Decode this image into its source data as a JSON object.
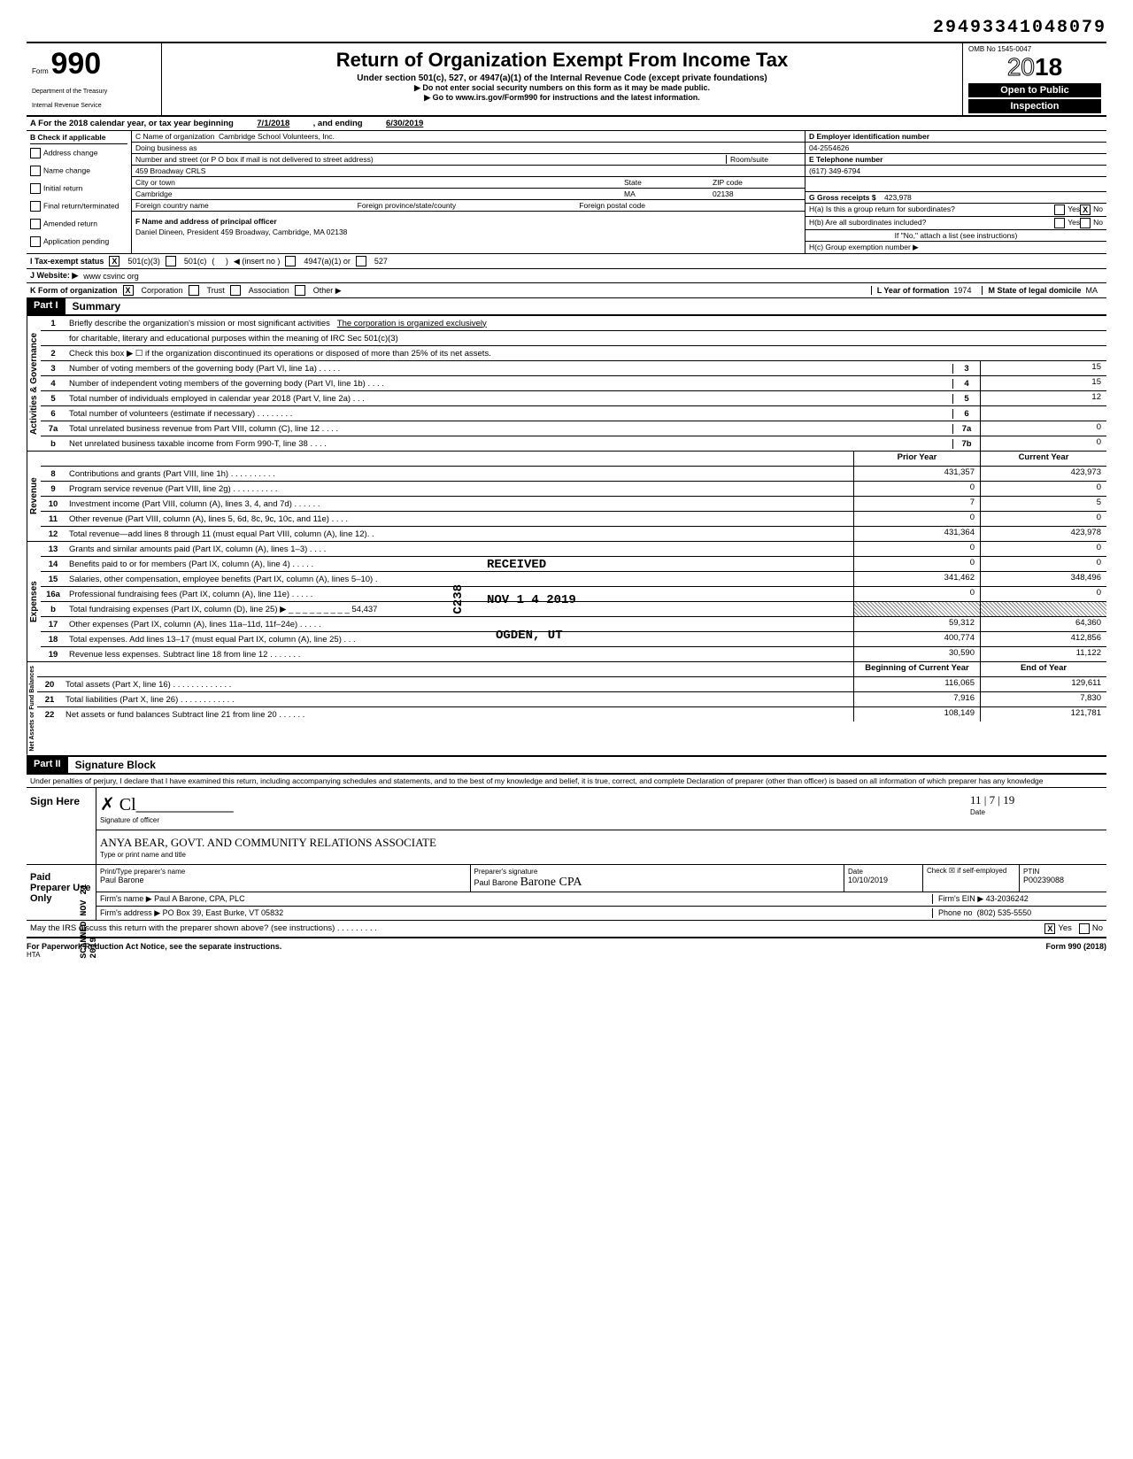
{
  "topright_id": "29493341048079",
  "header": {
    "form_label": "Form",
    "form_number": "990",
    "dept1": "Department of the Treasury",
    "dept2": "Internal Revenue Service",
    "title": "Return of Organization Exempt From Income Tax",
    "subtitle": "Under section 501(c), 527, or 4947(a)(1) of the Internal Revenue Code (except private foundations)",
    "warn": "▶ Do not enter social security numbers on this form as it may be made public.",
    "goto": "▶ Go to www.irs.gov/Form990 for instructions and the latest information.",
    "omb": "OMB No 1545-0047",
    "year": "2018",
    "open1": "Open to Public",
    "open2": "Inspection"
  },
  "row_a": {
    "label": "A   For the 2018 calendar year, or tax year beginning",
    "begin": "7/1/2018",
    "mid": ", and ending",
    "end": "6/30/2019"
  },
  "col_b": {
    "head": "B  Check if applicable",
    "items": [
      "Address change",
      "Name change",
      "Initial return",
      "Final return/terminated",
      "Amended return",
      "Application pending"
    ]
  },
  "col_c": {
    "name_lbl": "C  Name of organization",
    "name": "Cambridge School Volunteers, Inc.",
    "dba_lbl": "Doing business as",
    "dba": "",
    "addr_lbl": "Number and street (or P O box if mail is not delivered to street address)",
    "room_lbl": "Room/suite",
    "addr": "459 Broadway CRLS",
    "city_lbl": "City or town",
    "state_lbl": "State",
    "zip_lbl": "ZIP code",
    "city": "Cambridge",
    "state": "MA",
    "zip": "02138",
    "foreign_lbl": "Foreign country name",
    "fprov_lbl": "Foreign province/state/county",
    "fpost_lbl": "Foreign postal code",
    "officer_lbl": "F  Name and address of principal officer",
    "officer": "Daniel Dineen, President 459 Broadway, Cambridge, MA  02138"
  },
  "col_de": {
    "d_lbl": "D   Employer identification number",
    "ein": "04-2554626",
    "e_lbl": "E   Telephone number",
    "phone": "(617) 349-6794",
    "g_lbl": "G   Gross receipts $",
    "gross": "423,978",
    "h_a": "H(a) Is this a group return for subordinates?",
    "h_a_yes": "Yes",
    "h_a_no": "No",
    "h_b": "H(b) Are all subordinates included?",
    "h_b_note": "If \"No,\" attach a list (see instructions)",
    "h_c": "H(c) Group exemption number ▶"
  },
  "row_i": {
    "lbl": "I    Tax-exempt status",
    "opt1": "501(c)(3)",
    "opt2": "501(c)",
    "insert": "◀ (insert no )",
    "opt3": "4947(a)(1) or",
    "opt4": "527"
  },
  "row_j": {
    "lbl": "J   Website: ▶",
    "val": "www csvinc org"
  },
  "row_k": {
    "lbl": "K  Form of organization",
    "opts": [
      "Corporation",
      "Trust",
      "Association",
      "Other ▶"
    ],
    "l_lbl": "L  Year of formation",
    "l_val": "1974",
    "m_lbl": "M State of legal domicile",
    "m_val": "MA"
  },
  "part1": {
    "header": "Part I",
    "title": "Summary",
    "sections": {
      "activities": {
        "tab": "Activities & Governance",
        "lines": [
          {
            "n": "1",
            "txt": "Briefly describe the organization's mission or most significant activities",
            "val": "The corporation is organized exclusively"
          },
          {
            "n": "",
            "txt": "for charitable, literary and educational purposes within the meaning of IRC Sec 501(c)(3)",
            "val": ""
          },
          {
            "n": "2",
            "txt": "Check this box ▶ ☐ if the organization discontinued its operations or disposed of more than 25% of its net assets."
          },
          {
            "n": "3",
            "txt": "Number of voting members of the governing body (Part VI, line 1a) . . . . .",
            "cn": "3",
            "cv": "15"
          },
          {
            "n": "4",
            "txt": "Number of independent voting members of the governing body (Part VI, line 1b) . . . .",
            "cn": "4",
            "cv": "15"
          },
          {
            "n": "5",
            "txt": "Total number of individuals employed in calendar year 2018 (Part V, line 2a) . . .",
            "cn": "5",
            "cv": "12"
          },
          {
            "n": "6",
            "txt": "Total number of volunteers (estimate if necessary) . . . . . . . .",
            "cn": "6",
            "cv": ""
          },
          {
            "n": "7a",
            "txt": "Total unrelated business revenue from Part VIII, column (C), line 12 . . . .",
            "cn": "7a",
            "cv": "0"
          },
          {
            "n": "b",
            "txt": "Net unrelated business taxable income from Form 990-T, line 38 . . . .",
            "cn": "7b",
            "cv": "0"
          }
        ]
      },
      "revenue": {
        "tab": "Revenue",
        "hdr_prior": "Prior Year",
        "hdr_curr": "Current Year",
        "lines": [
          {
            "n": "8",
            "txt": "Contributions and grants (Part VIII, line 1h) . . . . . . . . . .",
            "p": "431,357",
            "c": "423,973"
          },
          {
            "n": "9",
            "txt": "Program service revenue (Part VIII, line 2g) . . . . . . . . . .",
            "p": "0",
            "c": "0"
          },
          {
            "n": "10",
            "txt": "Investment income (Part VIII, column (A), lines 3, 4, and 7d) . . . . . .",
            "p": "7",
            "c": "5"
          },
          {
            "n": "11",
            "txt": "Other revenue (Part VIII, column (A), lines 5, 6d, 8c, 9c, 10c, and 11e) . . . .",
            "p": "0",
            "c": "0"
          },
          {
            "n": "12",
            "txt": "Total revenue—add lines 8 through 11 (must equal Part VIII, column (A), line 12). .",
            "p": "431,364",
            "c": "423,978"
          }
        ]
      },
      "expenses": {
        "tab": "Expenses",
        "lines": [
          {
            "n": "13",
            "txt": "Grants and similar amounts paid (Part IX, column (A), lines 1–3) . . . .",
            "p": "0",
            "c": "0"
          },
          {
            "n": "14",
            "txt": "Benefits paid to or for members (Part IX, column (A), line 4) . . . . .",
            "p": "0",
            "c": "0"
          },
          {
            "n": "15",
            "txt": "Salaries, other compensation, employee benefits (Part IX, column (A), lines 5–10) .",
            "p": "341,462",
            "c": "348,496"
          },
          {
            "n": "16a",
            "txt": "Professional fundraising fees (Part IX, column (A), line 11e) . . . . .",
            "p": "0",
            "c": "0"
          },
          {
            "n": "b",
            "txt": "Total fundraising expenses (Part IX, column (D), line 25) ▶ _ _ _ _ _ _ _ _ _ 54,437",
            "p": "hatched",
            "c": "hatched"
          },
          {
            "n": "17",
            "txt": "Other expenses (Part IX, column (A), lines 11a–11d, 11f–24e) . . . . .",
            "p": "59,312",
            "c": "64,360"
          },
          {
            "n": "18",
            "txt": "Total expenses. Add lines 13–17 (must equal Part IX, column (A), line 25) . . .",
            "p": "400,774",
            "c": "412,856"
          },
          {
            "n": "19",
            "txt": "Revenue less expenses. Subtract line 18 from line 12 . . . . . . .",
            "p": "30,590",
            "c": "11,122"
          }
        ]
      },
      "netassets": {
        "tab": "Net Assets or Fund Balances",
        "hdr_beg": "Beginning of Current Year",
        "hdr_end": "End of Year",
        "lines": [
          {
            "n": "20",
            "txt": "Total assets (Part X, line 16) . . . . . . . . . . . . .",
            "p": "116,065",
            "c": "129,611"
          },
          {
            "n": "21",
            "txt": "Total liabilities (Part X, line 26) . . . . . . . . . . . .",
            "p": "7,916",
            "c": "7,830"
          },
          {
            "n": "22",
            "txt": "Net assets or fund balances  Subtract line 21 from line 20 . . . . . .",
            "p": "108,149",
            "c": "121,781"
          }
        ]
      }
    }
  },
  "part2": {
    "header": "Part II",
    "title": "Signature Block",
    "perjury": "Under penalties of perjury, I declare that I have examined this return, including accompanying schedules and statements, and to the best of my knowledge and belief, it is true, correct, and complete  Declaration of preparer (other than officer) is based on all information of which preparer has any knowledge",
    "sign_here": "Sign Here",
    "sig_of_officer": "Signature of officer",
    "date_lbl": "Date",
    "date_val": "11 | 7 | 19",
    "type_name_lbl": "Type or print name and title",
    "officer_hand": "ANYA BEAR, GOVT. AND COMMUNITY RELATIONS ASSOCIATE",
    "paid": "Paid Preparer Use Only",
    "prep_name_lbl": "Print/Type preparer's name",
    "prep_name": "Paul Barone",
    "prep_sig_lbl": "Preparer's signature",
    "prep_sig": "Paul Barone",
    "prep_date_lbl": "Date",
    "prep_date": "10/10/2019",
    "check_if": "Check ☒ if self-employed",
    "ptin_lbl": "PTIN",
    "ptin": "P00239088",
    "firm_name_lbl": "Firm's name ▶",
    "firm_name": "Paul A Barone, CPA, PLC",
    "firm_ein_lbl": "Firm's EIN ▶",
    "firm_ein": "43-2036242",
    "firm_addr_lbl": "Firm's address ▶",
    "firm_addr": "PO Box 39, East Burke, VT 05832",
    "phone_lbl": "Phone no",
    "phone": "(802) 535-5550",
    "irs_discuss": "May the IRS discuss this return with the preparer shown above? (see instructions) . . . . . . . . ."
  },
  "footer": {
    "left": "For Paperwork Reduction Act Notice, see the separate instructions.",
    "hta": "HTA",
    "right": "Form 990 (2018)"
  },
  "stamps": {
    "received": "RECEIVED",
    "date": "NOV 1 4 2019",
    "ogden": "OGDEN, UT",
    "c238": "C238",
    "scanned": "SCANNED NOV 21 2019"
  },
  "colors": {
    "black": "#000000",
    "white": "#ffffff",
    "grey_hatch": "#888888"
  }
}
